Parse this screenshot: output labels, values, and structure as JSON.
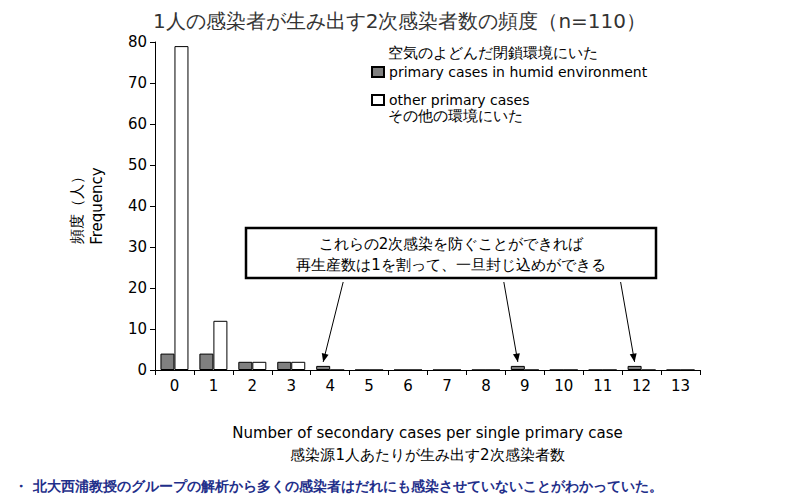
{
  "chart_data": {
    "type": "bar",
    "title": "1人の感染者が生み出す2次感染者数の頻度（n=110）",
    "categories": [
      "0",
      "1",
      "2",
      "3",
      "4",
      "5",
      "6",
      "7",
      "8",
      "9",
      "10",
      "11",
      "12",
      "13"
    ],
    "series": [
      {
        "name": "primary cases in humid environment",
        "label_ja": "空気のよどんだ閉鎖環境にいた",
        "color": "#808080",
        "values": [
          4,
          4,
          2,
          2,
          1,
          0,
          0,
          0,
          0,
          1,
          0,
          0,
          1,
          0
        ]
      },
      {
        "name": "other primary cases",
        "label_ja": "その他の環境にいた",
        "color": "#ffffff",
        "values": [
          79,
          12,
          2,
          2,
          0,
          0,
          0,
          0,
          0,
          0,
          0,
          0,
          0,
          0
        ]
      }
    ],
    "xlabel": [
      "Number of secondary cases per single primary case",
      "感染源1人あたりが生み出す2次感染者数"
    ],
    "ylabel": [
      "頻度（人）",
      "Frequency"
    ],
    "ylim": [
      0,
      80
    ],
    "yticks": [
      0,
      10,
      20,
      30,
      40,
      50,
      60,
      70,
      80
    ],
    "grid": false,
    "legend": "upper right",
    "annotation": [
      "これらの2次感染を防ぐことができれば",
      "再生産数は1を割って、一旦封じ込めができる"
    ],
    "annotation_targets": [
      "4",
      "9",
      "12"
    ],
    "footnote": "・ 北大西浦教授のグループの解析から多くの感染者はだれにも感染させていないことがわかっていた。"
  }
}
